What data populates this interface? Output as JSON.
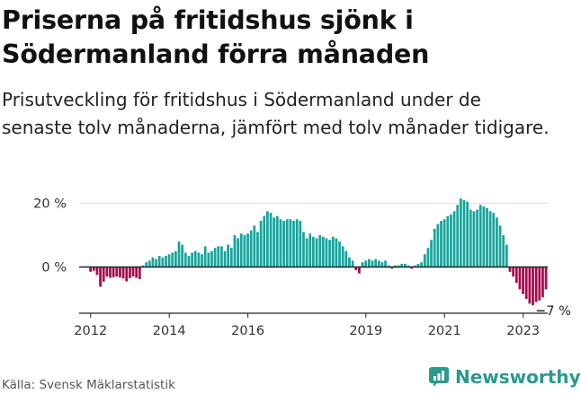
{
  "title": "Priserna på fritidshus sjönk i Södermanland förra månaden",
  "subtitle": "Prisutveckling för fritidshus i Södermanland under de senaste tolv månaderna, jämfört med tolv månader tidigare.",
  "source": "Källa: Svensk Mäklarstatistik",
  "brand": {
    "name": "Newsworthy",
    "icon": "newsworthy-logo-icon"
  },
  "colors": {
    "positive": "#18a39b",
    "negative": "#a6094d",
    "axis": "#222222",
    "grid": "#dddddd"
  },
  "chart_data": {
    "type": "bar",
    "title": "Priserna på fritidshus sjönk i Södermanland förra månaden",
    "subtitle": "Prisutveckling för fritidshus i Södermanland under de senaste tolv månaderna, jämfört med tolv månader tidigare.",
    "xlabel": "",
    "ylabel": "",
    "unit": "%",
    "x_range": [
      "2011-10",
      "2023-08"
    ],
    "ylim": [
      -14,
      22
    ],
    "y_ticks": [
      {
        "value": 0,
        "label": "0 %"
      },
      {
        "value": 20,
        "label": "20 %"
      }
    ],
    "x_ticks": [
      {
        "date": "2012-01",
        "label": "2012"
      },
      {
        "date": "2014-01",
        "label": "2014"
      },
      {
        "date": "2016-01",
        "label": "2016"
      },
      {
        "date": "2019-01",
        "label": "2019"
      },
      {
        "date": "2021-01",
        "label": "2021"
      },
      {
        "date": "2023-01",
        "label": "2023"
      }
    ],
    "annotation": {
      "date": "2023-08",
      "value": -7,
      "label": "−7 %"
    },
    "grid": true,
    "legend": "none",
    "series": [
      {
        "start": "2012-01",
        "values": [
          -1.5,
          -1.2,
          -2.5,
          -6.2,
          -4.6,
          -3.0,
          -3.4,
          -3.2,
          -3.0,
          -3.3,
          -3.6,
          -4.5,
          -3.5,
          -3.0,
          -3.4,
          -3.8,
          0.5,
          1.5,
          2.0,
          3.0,
          2.5,
          3.5,
          3.0,
          3.5,
          4.0,
          4.5,
          5.0,
          8.0,
          7.0,
          4.5,
          3.5,
          4.5,
          5.0,
          4.5,
          4.0,
          6.5,
          4.5,
          5.0,
          6.0,
          6.5,
          6.5,
          5.0,
          7.0,
          6.0,
          10.0,
          9.0,
          10.5,
          10.0,
          10.5,
          11.5,
          13.0,
          11.0,
          14.5,
          16.0,
          17.5,
          17.0,
          15.5,
          16.0,
          15.0,
          14.5,
          15.0,
          15.0,
          14.5,
          15.0,
          14.5,
          11.0,
          9.0,
          10.5,
          9.5,
          9.0,
          10.0,
          9.5,
          9.0,
          8.5,
          9.5,
          9.0,
          8.0,
          6.5,
          5.0,
          3.0,
          2.0,
          -1.0,
          -2.0,
          1.5,
          2.0,
          2.5,
          2.0,
          2.5,
          2.0,
          1.5,
          2.0,
          0.5,
          -0.5,
          0.5,
          0.5,
          1.0,
          1.0,
          0.5,
          -0.5,
          0.5,
          1.0,
          1.5,
          4.0,
          6.0,
          8.5,
          12.0,
          13.5,
          14.5,
          15.0,
          16.0,
          16.5,
          17.5,
          19.5,
          21.5,
          21.0,
          20.5,
          18.0,
          17.5,
          18.0,
          19.5,
          19.0,
          18.5,
          17.5,
          17.0,
          15.5,
          13.0,
          10.0,
          7.0,
          -1.5,
          -3.0,
          -5.0,
          -7.0,
          -8.5,
          -10.0,
          -11.5,
          -12.0,
          -11.0,
          -10.5,
          -9.5,
          -7.0
        ]
      }
    ]
  }
}
